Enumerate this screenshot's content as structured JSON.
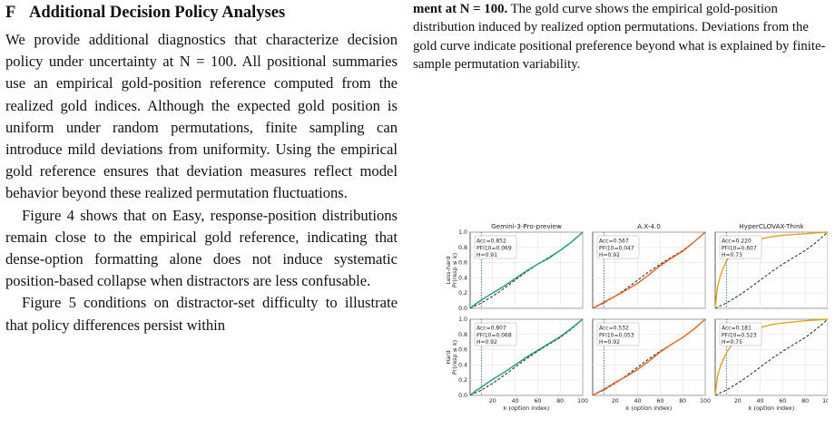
{
  "left": {
    "section_number": "F",
    "section_title": "Additional Decision Policy Analyses",
    "paragraphs": [
      "We provide additional diagnostics that characterize decision policy under uncertainty at N = 100. All positional summaries use an empirical gold-position reference computed from the realized gold indices. Although the expected gold position is uniform under random permutations, finite sampling can introduce mild deviations from uniformity. Using the empirical gold reference ensures that deviation measures reflect model behavior beyond these realized permutation fluctuations.",
      "Figure 4 shows that on Easy, response-position distributions remain close to the empirical gold reference, indicating that dense-option formatting alone does not induce systematic position-based collapse when distractors are less confusable.",
      "Figure 5 conditions on distractor-set difficulty to illustrate that policy differences persist within"
    ]
  },
  "right": {
    "caption_bold": "ment at N = 100.",
    "caption_rest": " The gold curve shows the empirical gold-position distribution induced by realized option permutations. Deviations from the gold curve indicate positional preference beyond what is explained by finite-sample permutation variability."
  },
  "chart_data": {
    "type": "line",
    "columns": [
      "Gemini-3-Pro-preview",
      "A.X-4.0",
      "HyperCLOVAX-Think"
    ],
    "rows": [
      "Less-hard",
      "Hard"
    ],
    "ylabel_suffix": "Pr(resp ≤ k)",
    "xlabel": "k (option index)",
    "xlim": [
      0,
      100
    ],
    "ylim": [
      0,
      1
    ],
    "xticks": [
      20,
      40,
      60,
      80,
      100
    ],
    "yticks": [
      "0.0",
      "0.2",
      "0.4",
      "0.6",
      "0.8",
      "1.0"
    ],
    "reference_k": 10,
    "grid": true,
    "colors": {
      "Gemini-3-Pro-preview": "#1a9a76",
      "A.X-4.0": "#e4601a",
      "HyperCLOVAX-Think": "#e6a11b",
      "gold": "#222222",
      "reference": "#2a6fb5"
    },
    "panels": [
      {
        "row": "Less-hard",
        "model": "Gemini-3-Pro-preview",
        "stats": [
          "Acc=0.852",
          "PFI10=0.069",
          "H=0.91"
        ],
        "curve": [
          [
            0,
            0
          ],
          [
            5,
            0.06
          ],
          [
            10,
            0.11
          ],
          [
            20,
            0.2
          ],
          [
            30,
            0.29
          ],
          [
            40,
            0.39
          ],
          [
            50,
            0.49
          ],
          [
            60,
            0.58
          ],
          [
            70,
            0.66
          ],
          [
            80,
            0.76
          ],
          [
            90,
            0.87
          ],
          [
            100,
            1.0
          ]
        ]
      },
      {
        "row": "Less-hard",
        "model": "A.X-4.0",
        "stats": [
          "Acc=0.567",
          "PFI10=0.047",
          "H=0.92"
        ],
        "curve": [
          [
            0,
            0
          ],
          [
            5,
            0.04
          ],
          [
            10,
            0.08
          ],
          [
            20,
            0.16
          ],
          [
            30,
            0.24
          ],
          [
            40,
            0.33
          ],
          [
            50,
            0.44
          ],
          [
            60,
            0.56
          ],
          [
            70,
            0.66
          ],
          [
            80,
            0.75
          ],
          [
            90,
            0.87
          ],
          [
            100,
            1.0
          ]
        ]
      },
      {
        "row": "Less-hard",
        "model": "HyperCLOVAX-Think",
        "stats": [
          "Acc=0.220",
          "PFI10=0.607",
          "H=0.73"
        ],
        "curve": [
          [
            0,
            0
          ],
          [
            2,
            0.28
          ],
          [
            5,
            0.45
          ],
          [
            10,
            0.62
          ],
          [
            15,
            0.72
          ],
          [
            20,
            0.78
          ],
          [
            30,
            0.86
          ],
          [
            40,
            0.91
          ],
          [
            50,
            0.94
          ],
          [
            60,
            0.96
          ],
          [
            80,
            0.98
          ],
          [
            100,
            1.0
          ]
        ]
      },
      {
        "row": "Hard",
        "model": "Gemini-3-Pro-preview",
        "stats": [
          "Acc=0.807",
          "PFI10=0.068",
          "H=0.92"
        ],
        "curve": [
          [
            0,
            0
          ],
          [
            5,
            0.06
          ],
          [
            10,
            0.11
          ],
          [
            20,
            0.21
          ],
          [
            30,
            0.3
          ],
          [
            40,
            0.4
          ],
          [
            50,
            0.5
          ],
          [
            60,
            0.59
          ],
          [
            70,
            0.68
          ],
          [
            80,
            0.77
          ],
          [
            90,
            0.88
          ],
          [
            100,
            1.0
          ]
        ]
      },
      {
        "row": "Hard",
        "model": "A.X-4.0",
        "stats": [
          "Acc=0.532",
          "PFI10=0.053",
          "H=0.92"
        ],
        "curve": [
          [
            0,
            0
          ],
          [
            5,
            0.04
          ],
          [
            10,
            0.08
          ],
          [
            20,
            0.17
          ],
          [
            30,
            0.25
          ],
          [
            40,
            0.34
          ],
          [
            50,
            0.45
          ],
          [
            60,
            0.57
          ],
          [
            70,
            0.67
          ],
          [
            80,
            0.76
          ],
          [
            90,
            0.87
          ],
          [
            100,
            1.0
          ]
        ]
      },
      {
        "row": "Hard",
        "model": "HyperCLOVAX-Think",
        "stats": [
          "Acc=0.181",
          "PFI10=0.523",
          "H=0.75"
        ],
        "curve": [
          [
            0,
            0
          ],
          [
            2,
            0.25
          ],
          [
            5,
            0.4
          ],
          [
            10,
            0.56
          ],
          [
            15,
            0.67
          ],
          [
            20,
            0.74
          ],
          [
            30,
            0.83
          ],
          [
            40,
            0.89
          ],
          [
            50,
            0.93
          ],
          [
            60,
            0.95
          ],
          [
            80,
            0.98
          ],
          [
            100,
            1.0
          ]
        ]
      }
    ],
    "gold_curve": [
      [
        0,
        0
      ],
      [
        10,
        0.07
      ],
      [
        20,
        0.16
      ],
      [
        30,
        0.26
      ],
      [
        40,
        0.37
      ],
      [
        50,
        0.48
      ],
      [
        60,
        0.58
      ],
      [
        70,
        0.67
      ],
      [
        80,
        0.76
      ],
      [
        90,
        0.87
      ],
      [
        100,
        1.0
      ]
    ]
  }
}
